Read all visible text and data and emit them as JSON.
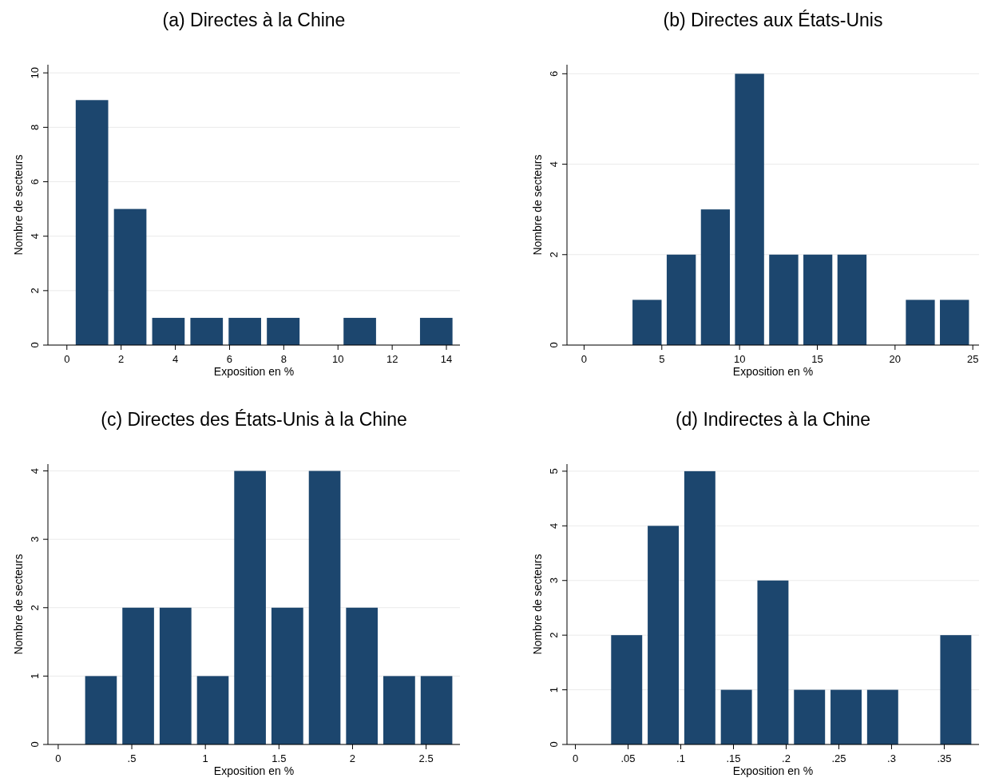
{
  "chart_data": [
    {
      "type": "histogram",
      "title": "(a) Directes à la Chine",
      "xlabel": "Exposition en %",
      "ylabel": "Nombre de secteurs",
      "color": "#1c466e",
      "grid": "y",
      "bins": [
        0.22,
        1.63,
        3.04,
        4.45,
        5.86,
        7.27,
        8.69,
        10.1,
        11.51,
        12.92,
        14.33
      ],
      "values": [
        9,
        5,
        1,
        1,
        1,
        1,
        0,
        1,
        0,
        1
      ],
      "xlim": [
        -0.7,
        14.5
      ],
      "xticks": [
        0,
        2,
        4,
        6,
        8,
        10,
        12,
        14
      ],
      "ylim": [
        0,
        10.3
      ],
      "yticks": [
        0,
        2,
        4,
        6,
        8,
        10
      ]
    },
    {
      "type": "histogram",
      "title": "(b) Directes aux États-Unis",
      "xlabel": "Exposition en %",
      "ylabel": "Nombre de secteurs",
      "color": "#1c466e",
      "grid": "y",
      "bins": [
        2.95,
        5.15,
        7.35,
        9.54,
        11.74,
        13.94,
        16.13,
        18.33,
        20.53,
        22.72,
        24.92
      ],
      "values": [
        1,
        2,
        3,
        6,
        2,
        2,
        2,
        0,
        1,
        1
      ],
      "xlim": [
        -1.1,
        25.4
      ],
      "xticks": [
        0,
        5,
        10,
        15,
        20,
        25
      ],
      "ylim": [
        0,
        6.2
      ],
      "yticks": [
        0,
        2,
        4,
        6
      ]
    },
    {
      "type": "histogram",
      "title": "(c) Directes des États-Unis à la Chine",
      "xlabel": "Exposition en %",
      "ylabel": "Nombre de secteurs",
      "color": "#1c466e",
      "grid": "y",
      "bins": [
        0.164,
        0.417,
        0.67,
        0.924,
        1.177,
        1.43,
        1.684,
        1.937,
        2.19,
        2.444,
        2.697
      ],
      "values": [
        1,
        2,
        2,
        1,
        4,
        2,
        4,
        2,
        1,
        1
      ],
      "xlim": [
        -0.07,
        2.73
      ],
      "xticks": [
        0,
        {
          "value": 0.5,
          "label": ".5"
        },
        1,
        1.5,
        2,
        2.5
      ],
      "ylim": [
        0,
        4.1
      ],
      "yticks": [
        0,
        1,
        2,
        3,
        4
      ]
    },
    {
      "type": "histogram",
      "title": "(d) Indirectes à la Chine",
      "xlabel": "Exposition en %",
      "ylabel": "Nombre de secteurs",
      "color": "#1c466e",
      "grid": "y",
      "bins": [
        0.0313,
        0.066,
        0.1007,
        0.1354,
        0.1701,
        0.2048,
        0.2395,
        0.2742,
        0.3089,
        0.3436,
        0.3783
      ],
      "values": [
        2,
        4,
        5,
        1,
        3,
        1,
        1,
        1,
        0,
        2
      ],
      "xlim": [
        -0.008,
        0.383
      ],
      "xticks": [
        0,
        {
          "value": 0.05,
          "label": ".05"
        },
        {
          "value": 0.1,
          "label": ".1"
        },
        {
          "value": 0.15,
          "label": ".15"
        },
        {
          "value": 0.2,
          "label": ".2"
        },
        {
          "value": 0.25,
          "label": ".25"
        },
        {
          "value": 0.3,
          "label": ".3"
        },
        {
          "value": 0.35,
          "label": ".35"
        }
      ],
      "ylim": [
        0,
        5.13
      ],
      "yticks": [
        0,
        1,
        2,
        3,
        4,
        5
      ]
    }
  ]
}
